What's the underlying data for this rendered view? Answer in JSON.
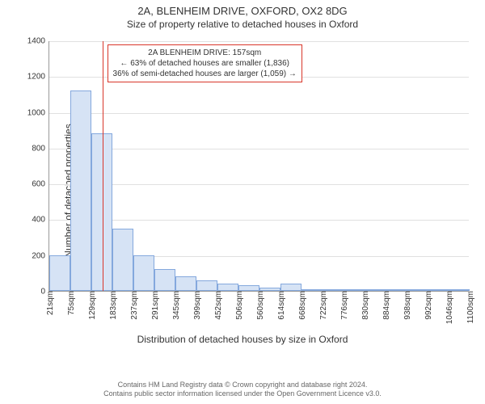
{
  "chart": {
    "type": "histogram",
    "title": "2A, BLENHEIM DRIVE, OXFORD, OX2 8DG",
    "subtitle": "Size of property relative to detached houses in Oxford",
    "title_fontsize": 13,
    "subtitle_fontsize": 12,
    "background_color": "#ffffff",
    "grid_color": "#e0e0e0",
    "axis_color": "#999999",
    "y": {
      "label": "Number of detached properties",
      "lim": [
        0,
        1400
      ],
      "tick_step": 200,
      "ticks": [
        0,
        200,
        400,
        600,
        800,
        1000,
        1200,
        1400
      ],
      "label_fontsize": 12,
      "tick_fontsize": 10
    },
    "x": {
      "label": "Distribution of detached houses by size in Oxford",
      "ticks": [
        "21sqm",
        "75sqm",
        "129sqm",
        "183sqm",
        "237sqm",
        "291sqm",
        "345sqm",
        "399sqm",
        "452sqm",
        "506sqm",
        "560sqm",
        "614sqm",
        "668sqm",
        "722sqm",
        "776sqm",
        "830sqm",
        "884sqm",
        "938sqm",
        "992sqm",
        "1046sqm",
        "1100sqm"
      ],
      "label_fontsize": 12,
      "tick_fontsize": 10
    },
    "bars": {
      "values": [
        200,
        1120,
        880,
        350,
        200,
        120,
        80,
        60,
        40,
        30,
        20,
        40,
        10,
        5,
        5,
        5,
        5,
        5,
        5,
        5
      ],
      "fill_color": "#d6e3f5",
      "border_color": "#84a8dd",
      "width_ratio": 1.0
    },
    "marker": {
      "color": "#d9362a",
      "x_value_sqm": 157,
      "x_range_sqm": [
        21,
        1100
      ]
    },
    "annotation": {
      "border_color": "#d9362a",
      "bg_color": "#ffffff",
      "lines": [
        "2A BLENHEIM DRIVE: 157sqm",
        "← 63% of detached houses are smaller (1,836)",
        "36% of semi-detached houses are larger (1,059) →"
      ],
      "fontsize": 10
    }
  },
  "footer": {
    "line1": "Contains HM Land Registry data © Crown copyright and database right 2024.",
    "line2": "Contains public sector information licensed under the Open Government Licence v3.0.",
    "fontsize": 9,
    "color": "#666666"
  }
}
